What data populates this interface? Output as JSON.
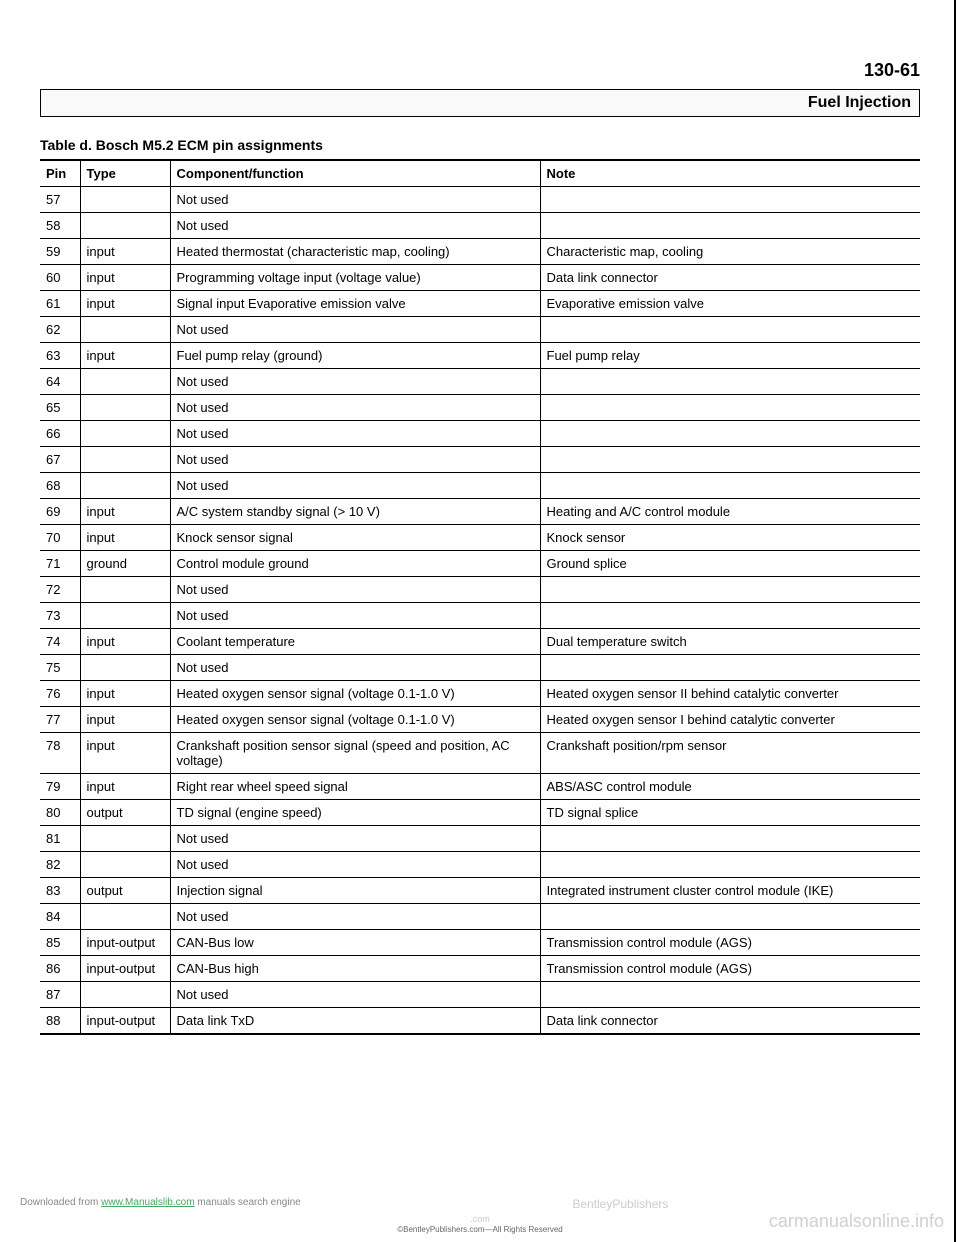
{
  "header": {
    "page_number": "130-61",
    "section_title": "Fuel Injection"
  },
  "table": {
    "caption": "Table d. Bosch M5.2 ECM pin assignments",
    "columns": [
      "Pin",
      "Type",
      "Component/function",
      "Note"
    ],
    "rows": [
      [
        "57",
        "",
        "Not used",
        ""
      ],
      [
        "58",
        "",
        "Not used",
        ""
      ],
      [
        "59",
        "input",
        "Heated thermostat (characteristic map, cooling)",
        "Characteristic map, cooling"
      ],
      [
        "60",
        "input",
        "Programming voltage input (voltage value)",
        "Data link connector"
      ],
      [
        "61",
        "input",
        "Signal input Evaporative emission valve",
        "Evaporative emission valve"
      ],
      [
        "62",
        "",
        "Not used",
        ""
      ],
      [
        "63",
        "input",
        "Fuel pump relay (ground)",
        "Fuel pump relay"
      ],
      [
        "64",
        "",
        "Not used",
        ""
      ],
      [
        "65",
        "",
        "Not used",
        ""
      ],
      [
        "66",
        "",
        "Not used",
        ""
      ],
      [
        "67",
        "",
        "Not used",
        ""
      ],
      [
        "68",
        "",
        "Not used",
        ""
      ],
      [
        "69",
        "input",
        "A/C system standby signal (> 10 V)",
        "Heating and A/C control module"
      ],
      [
        "70",
        "input",
        "Knock sensor signal",
        "Knock sensor"
      ],
      [
        "71",
        "ground",
        "Control module ground",
        "Ground splice"
      ],
      [
        "72",
        "",
        "Not used",
        ""
      ],
      [
        "73",
        "",
        "Not used",
        ""
      ],
      [
        "74",
        "input",
        "Coolant temperature",
        "Dual temperature switch"
      ],
      [
        "75",
        "",
        "Not used",
        ""
      ],
      [
        "76",
        "input",
        "Heated oxygen sensor signal (voltage 0.1-1.0 V)",
        "Heated oxygen sensor II behind catalytic converter"
      ],
      [
        "77",
        "input",
        "Heated oxygen sensor signal (voltage 0.1-1.0 V)",
        "Heated oxygen sensor I behind catalytic converter"
      ],
      [
        "78",
        "input",
        "Crankshaft position sensor signal (speed and position, AC voltage)",
        "Crankshaft position/rpm sensor"
      ],
      [
        "79",
        "input",
        "Right rear wheel speed signal",
        "ABS/ASC control module"
      ],
      [
        "80",
        "output",
        "TD signal (engine speed)",
        "TD signal splice"
      ],
      [
        "81",
        "",
        "Not used",
        ""
      ],
      [
        "82",
        "",
        "Not used",
        ""
      ],
      [
        "83",
        "output",
        "Injection signal",
        "Integrated instrument cluster control module (IKE)"
      ],
      [
        "84",
        "",
        "Not used",
        ""
      ],
      [
        "85",
        "input-output",
        "CAN-Bus low",
        "Transmission control module (AGS)"
      ],
      [
        "86",
        "input-output",
        "CAN-Bus high",
        "Transmission control module (AGS)"
      ],
      [
        "87",
        "",
        "Not used",
        ""
      ],
      [
        "88",
        "input-output",
        "Data link TxD",
        "Data link connector"
      ]
    ]
  },
  "footer": {
    "downloaded_prefix": "Downloaded from ",
    "downloaded_link": "www.Manualslib.com",
    "downloaded_suffix": " manuals search engine",
    "publisher": "BentleyPublishers",
    "publisher_sub": ".com",
    "rights": "©BentleyPublishers.com—All Rights Reserved",
    "watermark": "carmanualsonline.info"
  }
}
